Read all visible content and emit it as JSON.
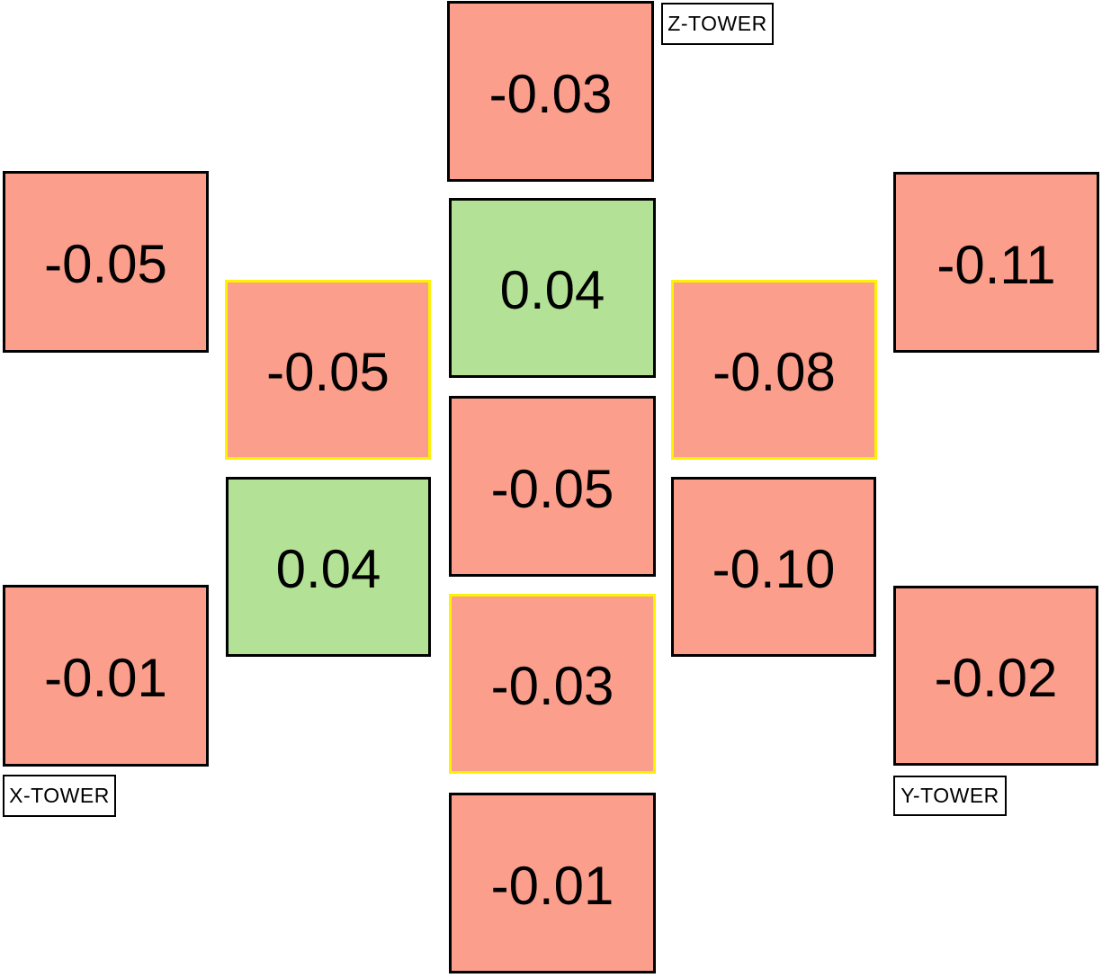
{
  "colors": {
    "negative_fill": "#fb9e8b",
    "positive_fill": "#b3e296",
    "border_default": "#000000",
    "border_highlight": "#fff200",
    "label_background": "#ffffff",
    "text": "#000000"
  },
  "towers": {
    "z_label": "Z-TOWER",
    "x_label": "X-TOWER",
    "y_label": "Y-TOWER"
  },
  "cells": [
    {
      "value": "-0.03",
      "positive": false,
      "highlight": false
    },
    {
      "value": "0.04",
      "positive": true,
      "highlight": false
    },
    {
      "value": "-0.05",
      "positive": false,
      "highlight": false
    },
    {
      "value": "-0.03",
      "positive": false,
      "highlight": true
    },
    {
      "value": "-0.01",
      "positive": false,
      "highlight": false
    },
    {
      "value": "-0.05",
      "positive": false,
      "highlight": false
    },
    {
      "value": "-0.05",
      "positive": false,
      "highlight": true
    },
    {
      "value": "0.04",
      "positive": true,
      "highlight": false
    },
    {
      "value": "-0.01",
      "positive": false,
      "highlight": false
    },
    {
      "value": "-0.11",
      "positive": false,
      "highlight": false
    },
    {
      "value": "-0.08",
      "positive": false,
      "highlight": true
    },
    {
      "value": "-0.10",
      "positive": false,
      "highlight": false
    },
    {
      "value": "-0.02",
      "positive": false,
      "highlight": false
    }
  ]
}
